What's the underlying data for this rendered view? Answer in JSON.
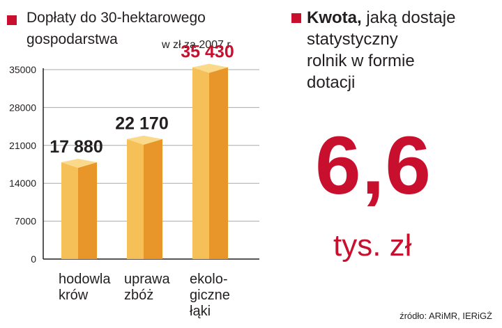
{
  "left_panel": {
    "title_line1": "Dopłaty do 30-hektarowego",
    "title_line2": "gospodarstwa",
    "unit_note": "w zł za 2007 r."
  },
  "right_panel": {
    "title_bold": "Kwota,",
    "title_rest_line1": " jaką dostaje",
    "title_line2": "statystyczny",
    "title_line3": "rolnik w formie",
    "title_line4": "dotacji",
    "big_value": "6,6",
    "big_unit": "tys. zł"
  },
  "source": "źródło: ARiMR, IERiGŻ",
  "colors": {
    "accent": "#c8102e",
    "bar_front": "#f6c058",
    "bar_side": "#e8962a",
    "bar_top": "#fbd98a",
    "axis": "#231f20",
    "grid": "#aaaaaa"
  },
  "chart_data": {
    "type": "bar",
    "categories": [
      [
        "hodowla",
        "krów"
      ],
      [
        "uprawa",
        "zbóż"
      ],
      [
        "ekolo-",
        "giczne",
        "łąki"
      ]
    ],
    "values": [
      17880,
      22170,
      35430
    ],
    "value_labels": [
      "17 880",
      "22 170",
      "35 430"
    ],
    "highlight_index": 2,
    "yticks": [
      0,
      7000,
      14000,
      21000,
      28000,
      35000
    ],
    "ylim": [
      0,
      35000
    ],
    "grid": true
  }
}
